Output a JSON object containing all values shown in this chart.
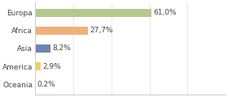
{
  "categories": [
    "Europa",
    "Africa",
    "Asia",
    "America",
    "Oceania"
  ],
  "values": [
    61.0,
    27.7,
    8.2,
    2.9,
    0.2
  ],
  "labels": [
    "61,0%",
    "27,7%",
    "8,2%",
    "2,9%",
    "0,2%"
  ],
  "bar_colors": [
    "#b5c98e",
    "#f0b07a",
    "#6e85b2",
    "#f0d060",
    "#a0c8a0"
  ],
  "background_color": "#ffffff",
  "xlim": [
    0,
    100
  ],
  "bar_height": 0.45,
  "label_fontsize": 6.5,
  "tick_fontsize": 6.5,
  "figsize": [
    2.8,
    1.2
  ],
  "dpi": 100
}
